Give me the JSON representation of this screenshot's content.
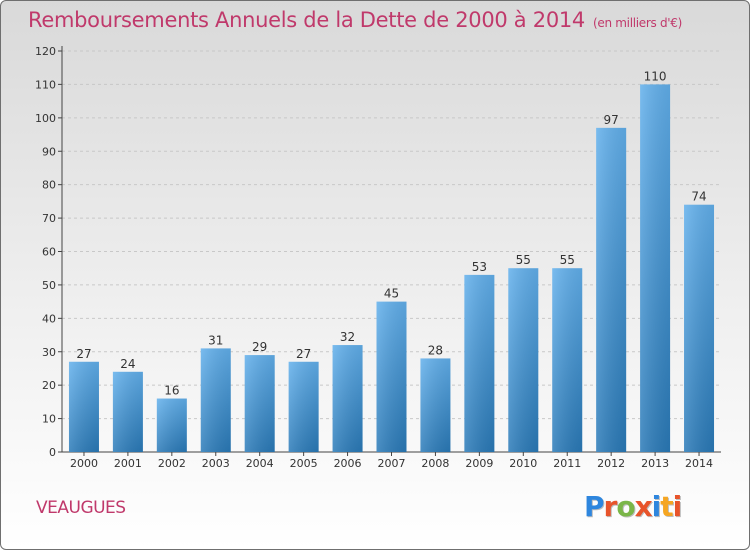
{
  "header": {
    "title": "Remboursements Annuels de la Dette de 2000 à 2014",
    "unit": "(en milliers d'€)"
  },
  "footer": {
    "place": "VEAUGUES",
    "logo": "Proxiti",
    "logo_colors": [
      "#2e86de",
      "#e8542b",
      "#7ab648",
      "#e8542b",
      "#2e86de",
      "#f5a623",
      "#e8542b"
    ]
  },
  "colors": {
    "bar_light": "#62b0ec",
    "bar_dark": "#2a7ab8",
    "accent": "#c0396b"
  },
  "chart_data": {
    "type": "bar",
    "title": "Remboursements Annuels de la Dette de 2000 à 2014",
    "ylabel": "",
    "xlabel": "",
    "categories": [
      "2000",
      "2001",
      "2002",
      "2003",
      "2004",
      "2005",
      "2006",
      "2007",
      "2008",
      "2009",
      "2010",
      "2011",
      "2012",
      "2013",
      "2014"
    ],
    "values": [
      27,
      24,
      16,
      31,
      29,
      27,
      32,
      45,
      28,
      53,
      55,
      55,
      97,
      110,
      74
    ],
    "ylim": [
      0,
      120
    ],
    "yticks": [
      0,
      10,
      20,
      30,
      40,
      50,
      60,
      70,
      80,
      90,
      100,
      110,
      120
    ],
    "grid": "horizontal"
  }
}
